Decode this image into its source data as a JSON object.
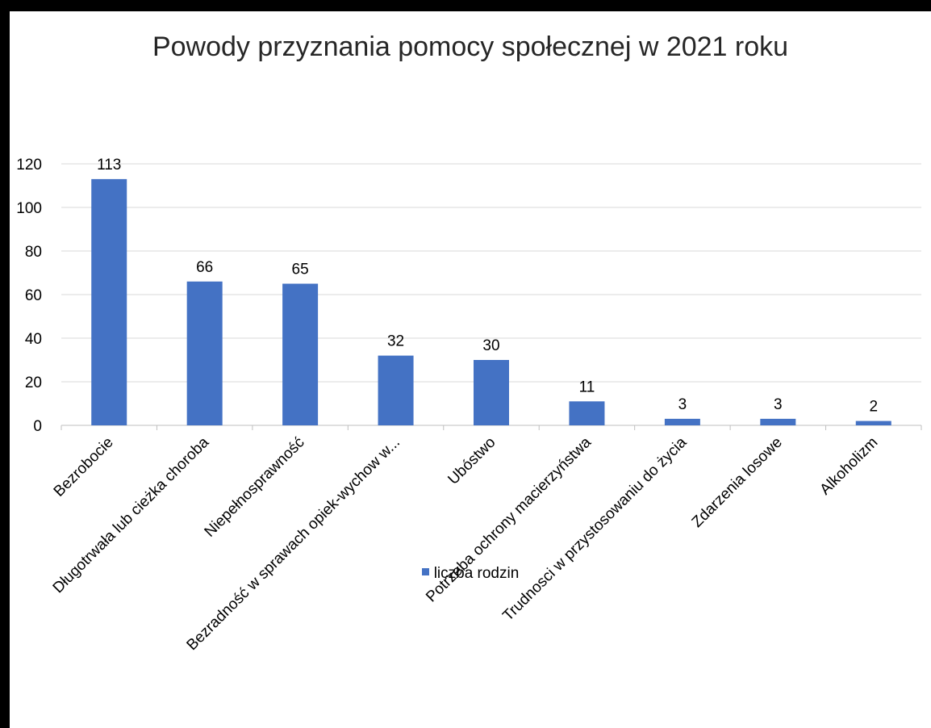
{
  "chart_data": {
    "type": "bar",
    "title": "Powody przyznania pomocy społecznej w 2021 roku",
    "categories": [
      "Bezrobocie",
      "Długotrwała lub cieżka choroba",
      "Niepełnosprawność",
      "Bezradność w sprawach opiek-wychow w...",
      "Ubóstwo",
      "Potrzeba ochrony macierzyństwa",
      "Trudnosci w przystosowaniu do życia",
      "Zdarzenia losowe",
      "Alkoholizm"
    ],
    "series": [
      {
        "name": "liczba rodzin",
        "values": [
          113,
          66,
          65,
          32,
          30,
          11,
          3,
          3,
          2
        ],
        "color": "#4472C4"
      }
    ],
    "ylim": [
      0,
      120
    ],
    "yticks": [
      0,
      20,
      40,
      60,
      80,
      100,
      120
    ],
    "grid": true,
    "legend_position": "bottom",
    "xlabel": "",
    "ylabel": ""
  }
}
